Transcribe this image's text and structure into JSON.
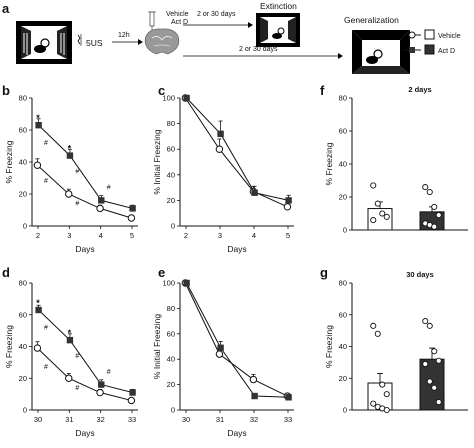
{
  "panels": {
    "a": {
      "letter": "a",
      "dose": "5US",
      "interval": "12h",
      "drug_lines": [
        "Vehicle",
        "Act D"
      ],
      "branch_top": "2 or 30 days",
      "branch_bottom": "2 or 30 days",
      "stage_extinction": "Extinction",
      "stage_generalization": "Generalization"
    },
    "b": {
      "letter": "b"
    },
    "c": {
      "letter": "c"
    },
    "d": {
      "letter": "d"
    },
    "e": {
      "letter": "e"
    },
    "f": {
      "letter": "f"
    },
    "g": {
      "letter": "g"
    }
  },
  "legend": {
    "vehicle": "Vehicle",
    "actd": "Act D"
  },
  "colors": {
    "vehicle_fill": "#ffffff",
    "actd_fill": "#333333",
    "line": "#111111"
  },
  "chart_data": [
    {
      "id": "b",
      "type": "line",
      "xlabel": "Days",
      "ylabel": "% Freezing",
      "categories": [
        "2",
        "3",
        "4",
        "5"
      ],
      "ylim": [
        0,
        80
      ],
      "yticks": [
        "0",
        "20",
        "40",
        "60",
        "80"
      ],
      "series": [
        {
          "name": "Vehicle",
          "values": [
            38,
            20,
            11,
            5
          ],
          "err": [
            4,
            3,
            2,
            1
          ]
        },
        {
          "name": "Act D",
          "values": [
            63,
            44,
            16,
            11
          ],
          "err": [
            4,
            4,
            3,
            2
          ]
        }
      ],
      "annotations": [
        {
          "text": "*",
          "x": "2",
          "y": 68
        },
        {
          "text": "*",
          "x": "3",
          "y": 49
        },
        {
          "text": "#",
          "x": "2",
          "y": 52
        },
        {
          "text": "#",
          "x": "3",
          "y": 34
        },
        {
          "text": "#",
          "x": "2",
          "y": 28
        },
        {
          "text": "#",
          "x": "3",
          "y": 14
        },
        {
          "text": "#",
          "x": "4",
          "y": 24
        }
      ]
    },
    {
      "id": "c",
      "type": "line",
      "xlabel": "Days",
      "ylabel": "% Initial Freezing",
      "categories": [
        "2",
        "3",
        "4",
        "5"
      ],
      "ylim": [
        0,
        100
      ],
      "yticks": [
        "0",
        "20",
        "40",
        "60",
        "80",
        "100"
      ],
      "series": [
        {
          "name": "Vehicle",
          "values": [
            100,
            60,
            27,
            15
          ],
          "err": [
            0,
            8,
            4,
            3
          ]
        },
        {
          "name": "Act D",
          "values": [
            100,
            72,
            26,
            20
          ],
          "err": [
            0,
            10,
            5,
            4
          ]
        }
      ]
    },
    {
      "id": "d",
      "type": "line",
      "xlabel": "Days",
      "ylabel": "% Freezing",
      "categories": [
        "30",
        "31",
        "32",
        "33"
      ],
      "ylim": [
        0,
        80
      ],
      "yticks": [
        "0",
        "20",
        "40",
        "60",
        "80"
      ],
      "series": [
        {
          "name": "Vehicle",
          "values": [
            39,
            20,
            11,
            6
          ],
          "err": [
            4,
            3,
            2,
            1
          ]
        },
        {
          "name": "Act D",
          "values": [
            63,
            44,
            16,
            11
          ],
          "err": [
            3,
            4,
            3,
            2
          ]
        }
      ],
      "annotations": [
        {
          "text": "*",
          "x": "30",
          "y": 68
        },
        {
          "text": "*",
          "x": "31",
          "y": 49
        },
        {
          "text": "#",
          "x": "30",
          "y": 52
        },
        {
          "text": "#",
          "x": "31",
          "y": 34
        },
        {
          "text": "#",
          "x": "30",
          "y": 27
        },
        {
          "text": "#",
          "x": "31",
          "y": 14
        },
        {
          "text": "#",
          "x": "32",
          "y": 24
        }
      ]
    },
    {
      "id": "e",
      "type": "line",
      "xlabel": "Days",
      "ylabel": "% Initial Freezing",
      "categories": [
        "30",
        "31",
        "32",
        "33"
      ],
      "ylim": [
        0,
        100
      ],
      "yticks": [
        "0",
        "20",
        "40",
        "60",
        "80",
        "100"
      ],
      "series": [
        {
          "name": "Vehicle",
          "values": [
            100,
            44,
            24,
            11
          ],
          "err": [
            0,
            5,
            4,
            2
          ]
        },
        {
          "name": "Act D",
          "values": [
            100,
            49,
            11,
            10
          ],
          "err": [
            0,
            5,
            2,
            2
          ]
        }
      ]
    },
    {
      "id": "f",
      "type": "bar",
      "title": "2 days",
      "ylabel": "% Freezing",
      "ylim": [
        0,
        80
      ],
      "yticks": [
        "0",
        "20",
        "40",
        "60",
        "80"
      ],
      "categories": [
        "Vehicle",
        "Act D"
      ],
      "values": [
        13,
        11
      ],
      "err": [
        4,
        3
      ],
      "points": [
        [
          27,
          16,
          10,
          8,
          6
        ],
        [
          26,
          23,
          14,
          9,
          4,
          3,
          2
        ]
      ]
    },
    {
      "id": "g",
      "type": "bar",
      "title": "30 days",
      "ylabel": "% Freezing",
      "ylim": [
        0,
        80
      ],
      "yticks": [
        "0",
        "20",
        "40",
        "60",
        "80"
      ],
      "categories": [
        "Vehicle",
        "Act D"
      ],
      "values": [
        17,
        32
      ],
      "err": [
        6,
        7
      ],
      "points": [
        [
          53,
          48,
          16,
          10,
          4,
          2,
          1,
          0
        ],
        [
          56,
          53,
          37,
          31,
          29,
          18,
          14,
          5
        ]
      ]
    }
  ]
}
